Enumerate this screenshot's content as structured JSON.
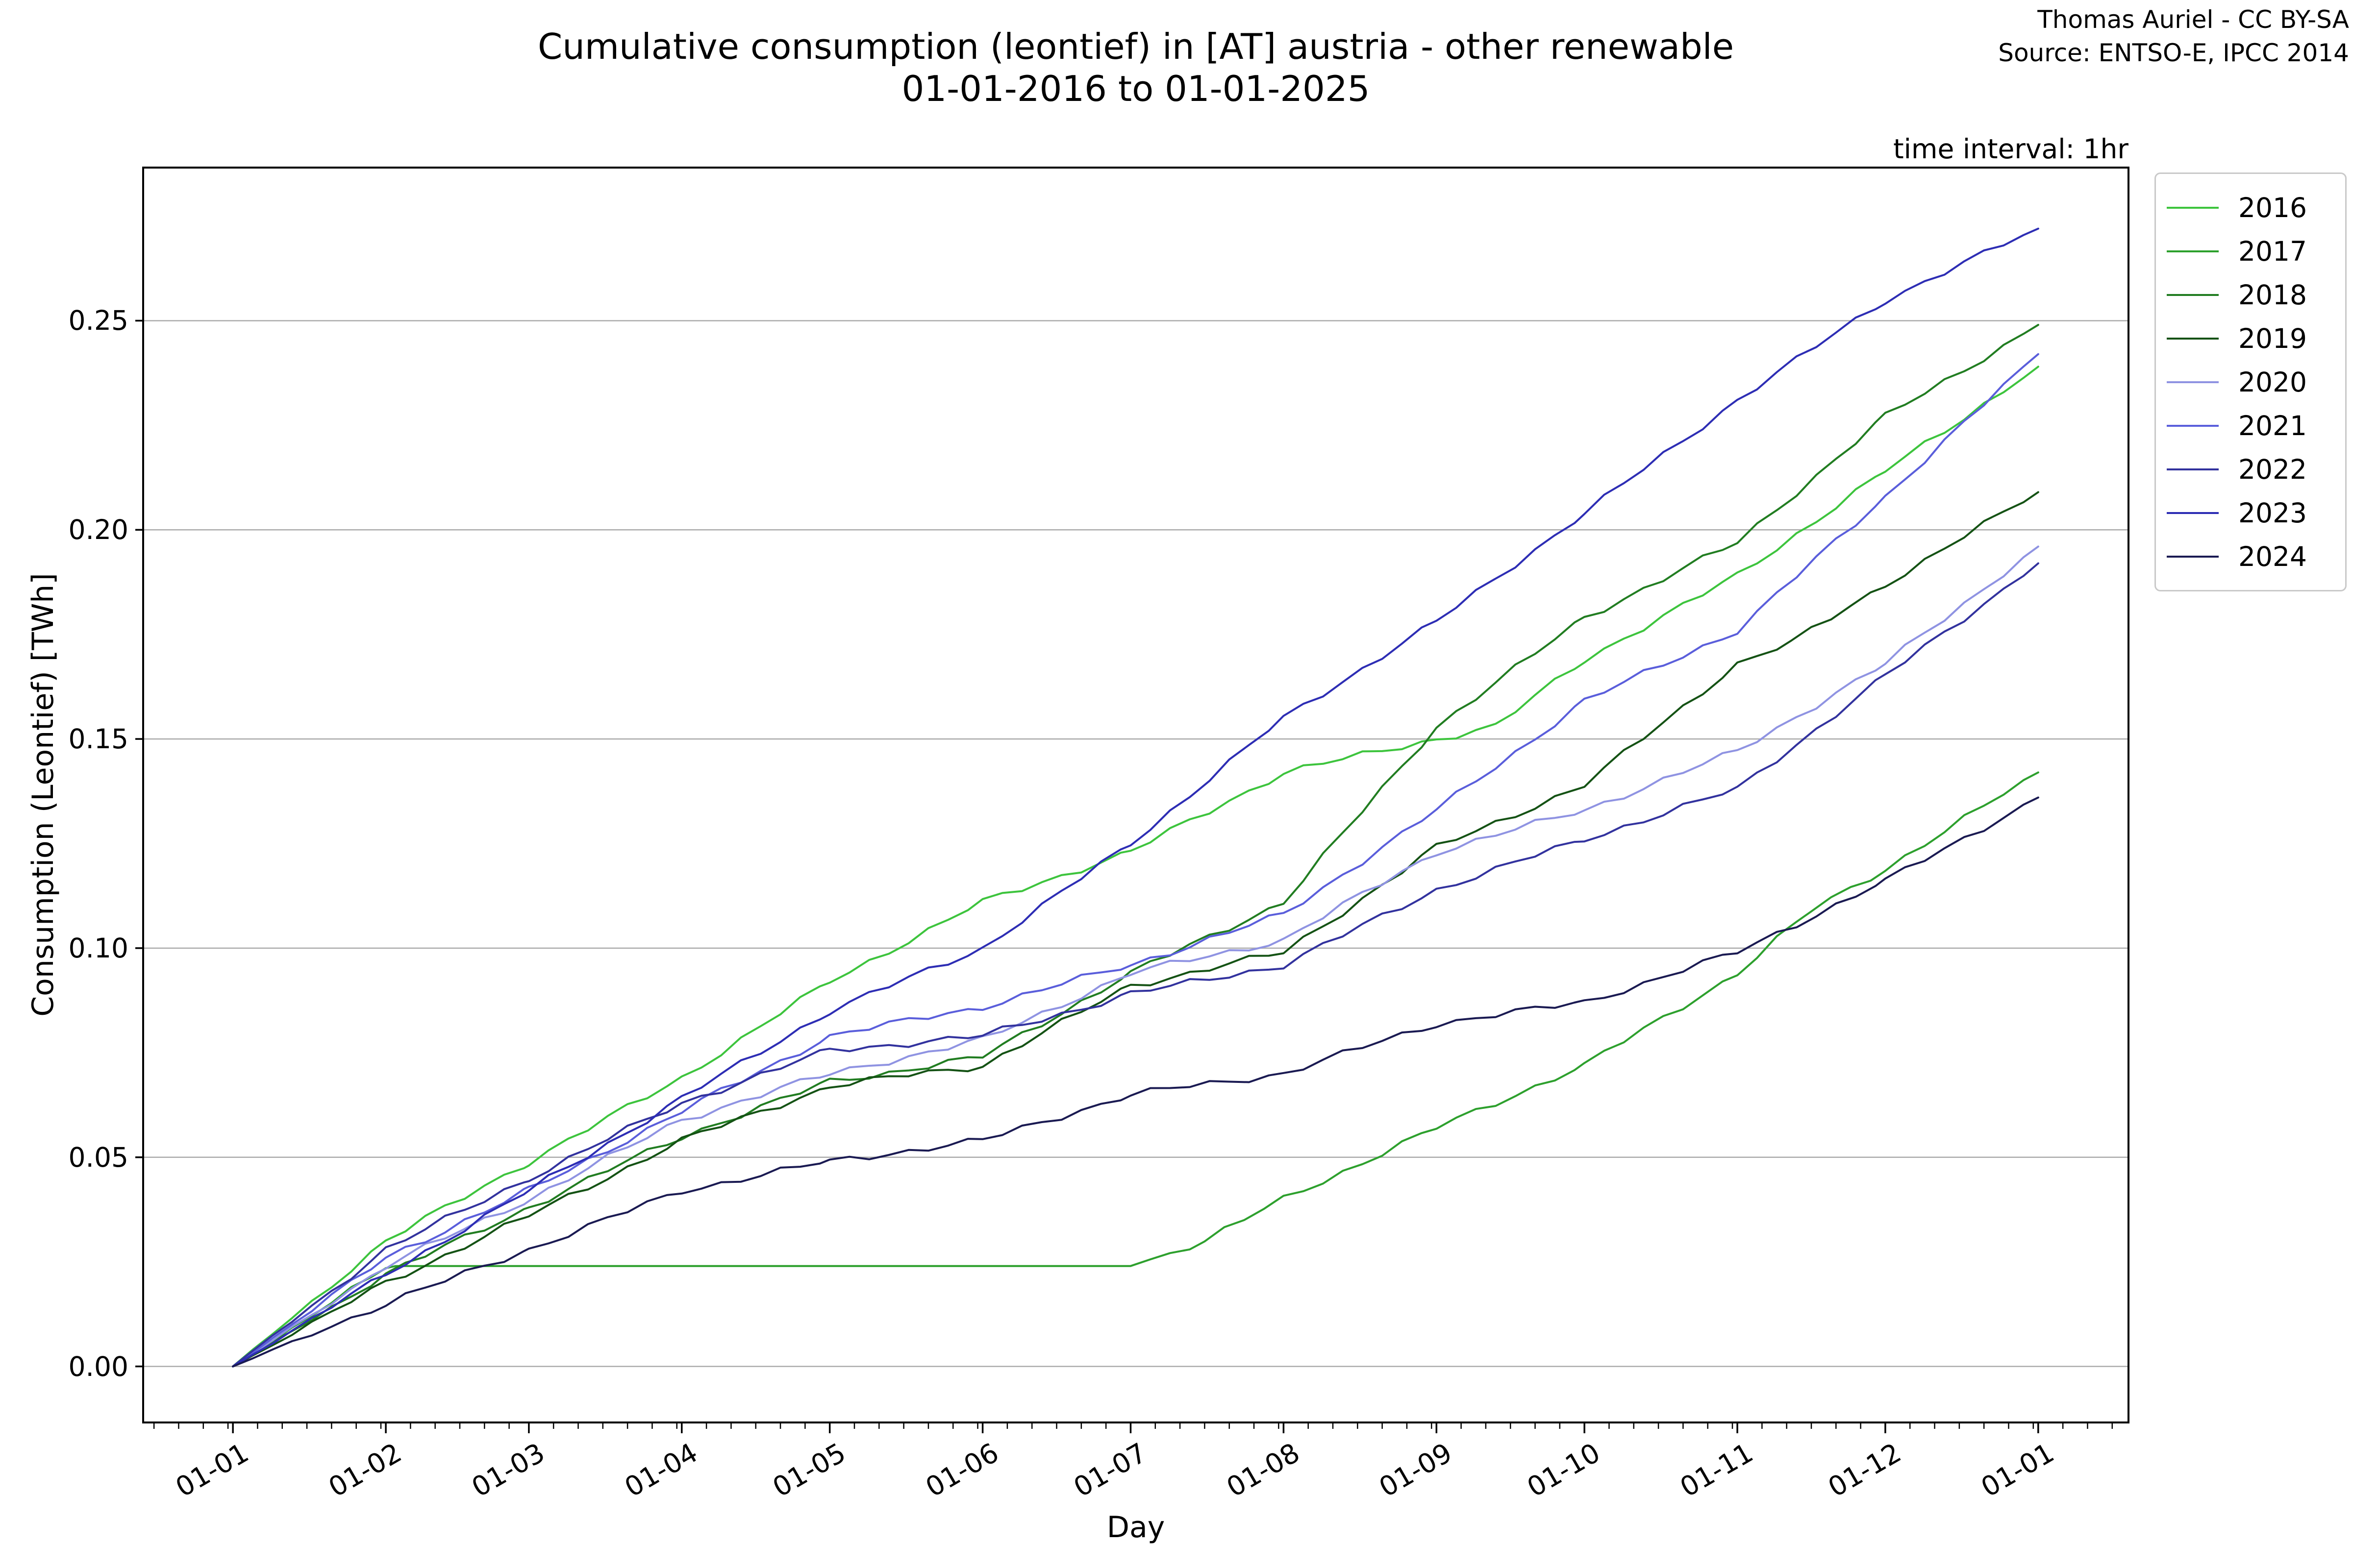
{
  "header": {
    "title_line1": "Cumulative consumption (leontief) in [AT] austria - other renewable",
    "title_line2": "01-01-2016 to 01-01-2025",
    "attribution_line1": "Thomas Auriel - CC BY-SA",
    "attribution_line2": "Source: ENTSO-E, IPCC 2014",
    "time_interval_note": "time interval: 1hr"
  },
  "chart_data": {
    "type": "line",
    "title": "Cumulative consumption (leontief) in [AT] austria - other renewable 01-01-2016 to 01-01-2025",
    "xlabel": "Day",
    "ylabel": "Consumption (Leontief) [TWh]",
    "x_tick_labels": [
      "01-01",
      "01-02",
      "01-03",
      "01-04",
      "01-05",
      "01-06",
      "01-07",
      "01-08",
      "01-09",
      "01-10",
      "01-11",
      "01-12",
      "01-01"
    ],
    "x_tick_days": [
      0,
      31,
      60,
      91,
      121,
      152,
      182,
      213,
      244,
      274,
      305,
      335,
      366
    ],
    "x_minor_tick_interval_days": 5,
    "y_tick_labels": [
      "0.00",
      "0.05",
      "0.10",
      "0.15",
      "0.20",
      "0.25"
    ],
    "y_tick_values": [
      0.0,
      0.05,
      0.1,
      0.15,
      0.2,
      0.25
    ],
    "ylim": [
      -0.0134,
      0.2866
    ],
    "xlim_days": [
      -18.2,
      384.3
    ],
    "grid": "horizontal-only",
    "grid_color": "#ababab",
    "axis_color": "#000000",
    "legend_position": "upper-right-outside",
    "units": "TWh",
    "series": [
      {
        "label": "2016",
        "color": "#3dc43d",
        "points": [
          [
            0,
            0
          ],
          [
            31,
            0.03
          ],
          [
            60,
            0.049
          ],
          [
            91,
            0.069
          ],
          [
            121,
            0.092
          ],
          [
            152,
            0.111
          ],
          [
            182,
            0.123
          ],
          [
            213,
            0.142
          ],
          [
            244,
            0.15
          ],
          [
            256,
            0.153
          ],
          [
            274,
            0.169
          ],
          [
            305,
            0.189
          ],
          [
            335,
            0.214
          ],
          [
            366,
            0.239
          ]
        ]
      },
      {
        "label": "2017",
        "color": "#2da02d",
        "points": [
          [
            0,
            0
          ],
          [
            31,
            0.0235
          ],
          [
            33,
            0.024
          ],
          [
            182,
            0.024
          ],
          [
            197,
            0.03
          ],
          [
            213,
            0.04
          ],
          [
            244,
            0.057
          ],
          [
            274,
            0.072
          ],
          [
            305,
            0.094
          ],
          [
            320,
            0.109
          ],
          [
            335,
            0.119
          ],
          [
            366,
            0.142
          ]
        ]
      },
      {
        "label": "2018",
        "color": "#217d21",
        "points": [
          [
            0,
            0
          ],
          [
            31,
            0.022
          ],
          [
            60,
            0.038
          ],
          [
            91,
            0.055
          ],
          [
            121,
            0.068
          ],
          [
            152,
            0.074
          ],
          [
            182,
            0.094
          ],
          [
            213,
            0.111
          ],
          [
            244,
            0.153
          ],
          [
            274,
            0.179
          ],
          [
            305,
            0.197
          ],
          [
            335,
            0.227
          ],
          [
            366,
            0.249
          ]
        ]
      },
      {
        "label": "2019",
        "color": "#145214",
        "points": [
          [
            0,
            0
          ],
          [
            31,
            0.02
          ],
          [
            60,
            0.036
          ],
          [
            91,
            0.054
          ],
          [
            121,
            0.067
          ],
          [
            152,
            0.072
          ],
          [
            182,
            0.091
          ],
          [
            213,
            0.099
          ],
          [
            244,
            0.124
          ],
          [
            274,
            0.139
          ],
          [
            305,
            0.168
          ],
          [
            316,
            0.173
          ],
          [
            335,
            0.187
          ],
          [
            366,
            0.209
          ]
        ]
      },
      {
        "label": "2020",
        "color": "#8f93e2",
        "points": [
          [
            0,
            0
          ],
          [
            31,
            0.024
          ],
          [
            60,
            0.04
          ],
          [
            91,
            0.059
          ],
          [
            121,
            0.07
          ],
          [
            152,
            0.078
          ],
          [
            182,
            0.094
          ],
          [
            213,
            0.102
          ],
          [
            244,
            0.123
          ],
          [
            274,
            0.133
          ],
          [
            305,
            0.147
          ],
          [
            335,
            0.168
          ],
          [
            366,
            0.196
          ]
        ]
      },
      {
        "label": "2021",
        "color": "#5a5edb",
        "points": [
          [
            0,
            0
          ],
          [
            31,
            0.026
          ],
          [
            60,
            0.042
          ],
          [
            91,
            0.061
          ],
          [
            121,
            0.079
          ],
          [
            152,
            0.086
          ],
          [
            182,
            0.096
          ],
          [
            213,
            0.108
          ],
          [
            244,
            0.133
          ],
          [
            274,
            0.159
          ],
          [
            305,
            0.176
          ],
          [
            335,
            0.208
          ],
          [
            366,
            0.242
          ]
        ]
      },
      {
        "label": "2022",
        "color": "#32329e",
        "points": [
          [
            0,
            0
          ],
          [
            31,
            0.028
          ],
          [
            60,
            0.045
          ],
          [
            91,
            0.063
          ],
          [
            121,
            0.0755
          ],
          [
            152,
            0.079
          ],
          [
            182,
            0.089
          ],
          [
            213,
            0.096
          ],
          [
            244,
            0.114
          ],
          [
            274,
            0.126
          ],
          [
            305,
            0.138
          ],
          [
            335,
            0.165
          ],
          [
            366,
            0.192
          ]
        ]
      },
      {
        "label": "2023",
        "color": "#2d2db4",
        "points": [
          [
            0,
            0
          ],
          [
            31,
            0.022
          ],
          [
            60,
            0.042
          ],
          [
            91,
            0.064
          ],
          [
            121,
            0.085
          ],
          [
            152,
            0.1
          ],
          [
            182,
            0.125
          ],
          [
            213,
            0.155
          ],
          [
            244,
            0.178
          ],
          [
            274,
            0.204
          ],
          [
            305,
            0.231
          ],
          [
            335,
            0.255
          ],
          [
            366,
            0.272
          ]
        ]
      },
      {
        "label": "2024",
        "color": "#1a1a52",
        "points": [
          [
            0,
            0
          ],
          [
            31,
            0.015
          ],
          [
            60,
            0.028
          ],
          [
            91,
            0.042
          ],
          [
            121,
            0.049
          ],
          [
            152,
            0.054
          ],
          [
            182,
            0.065
          ],
          [
            213,
            0.07
          ],
          [
            244,
            0.082
          ],
          [
            274,
            0.087
          ],
          [
            305,
            0.099
          ],
          [
            335,
            0.116
          ],
          [
            366,
            0.136
          ]
        ]
      }
    ]
  }
}
